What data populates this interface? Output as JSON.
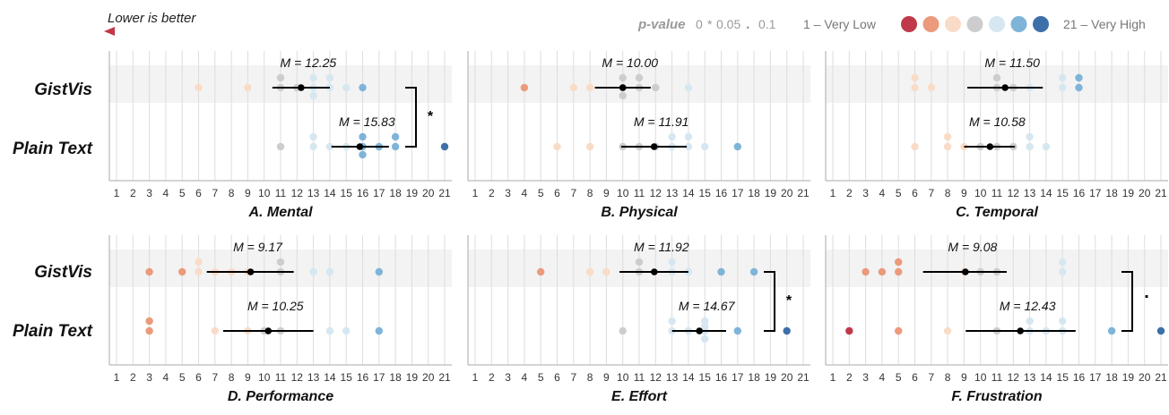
{
  "header": {
    "lower_better": "Lower is better",
    "pvalue_label": "p-value",
    "pvalue_scale": [
      "0",
      "*",
      "0.05",
      ".",
      "0.1"
    ],
    "scale_low": "1 – Very Low",
    "scale_high": "21 – Very High"
  },
  "colors": {
    "scale": [
      "#c0394a",
      "#eb9a7c",
      "#f9dcc8",
      "#cdcdcd",
      "#d6e7f1",
      "#7fb4d8",
      "#3d6fa8"
    ],
    "lower_better_arrow": [
      "#c0394a",
      "#3d6fa8"
    ]
  },
  "row_labels": [
    "GistVis",
    "Plain Text"
  ],
  "chart_data": [
    {
      "type": "scatter",
      "title": "A. Mental",
      "x_ticks": [
        1,
        2,
        3,
        4,
        5,
        6,
        7,
        8,
        9,
        10,
        11,
        12,
        13,
        14,
        15,
        16,
        17,
        18,
        19,
        20,
        21
      ],
      "xlim": [
        1,
        21
      ],
      "series": [
        {
          "name": "GistVis",
          "values": [
            6,
            9,
            11,
            11,
            12,
            13,
            13,
            13,
            14,
            14,
            15,
            16
          ],
          "mean": 12.25,
          "ci": [
            10.5,
            14.0
          ],
          "mean_label": "M = 12.25"
        },
        {
          "name": "Plain Text",
          "values": [
            11,
            13,
            13,
            14,
            15,
            16,
            16,
            16,
            17,
            18,
            18,
            21
          ],
          "mean": 15.83,
          "ci": [
            14.1,
            17.6
          ],
          "mean_label": "M = 15.83"
        }
      ],
      "significance": "*"
    },
    {
      "type": "scatter",
      "title": "B. Physical",
      "x_ticks": [
        1,
        2,
        3,
        4,
        5,
        6,
        7,
        8,
        9,
        10,
        11,
        12,
        13,
        14,
        15,
        16,
        17,
        18,
        19,
        20,
        21
      ],
      "xlim": [
        1,
        21
      ],
      "series": [
        {
          "name": "GistVis",
          "values": [
            4,
            7,
            8,
            10,
            10,
            10,
            11,
            11,
            12,
            14
          ],
          "mean": 10.0,
          "ci": [
            8.3,
            11.7
          ],
          "mean_label": "M = 10.00"
        },
        {
          "name": "Plain Text",
          "values": [
            6,
            8,
            10,
            11,
            12,
            13,
            13,
            14,
            14,
            15,
            17
          ],
          "mean": 11.91,
          "ci": [
            9.9,
            13.9
          ],
          "mean_label": "M = 11.91"
        }
      ],
      "significance": ""
    },
    {
      "type": "scatter",
      "title": "C. Temporal",
      "x_ticks": [
        1,
        2,
        3,
        4,
        5,
        6,
        7,
        8,
        9,
        10,
        11,
        12,
        13,
        14,
        15,
        16,
        17,
        18,
        19,
        20,
        21
      ],
      "xlim": [
        1,
        21
      ],
      "series": [
        {
          "name": "GistVis",
          "values": [
            6,
            6,
            7,
            11,
            11,
            12,
            13,
            15,
            15,
            16,
            16
          ],
          "mean": 11.5,
          "ci": [
            9.2,
            13.8
          ],
          "mean_label": "M = 11.50"
        },
        {
          "name": "Plain Text",
          "values": [
            6,
            8,
            8,
            9,
            10,
            11,
            12,
            13,
            13,
            14
          ],
          "mean": 10.58,
          "ci": [
            9.0,
            12.1
          ],
          "mean_label": "M = 10.58"
        }
      ],
      "significance": ""
    },
    {
      "type": "scatter",
      "title": "D. Performance",
      "x_ticks": [
        1,
        2,
        3,
        4,
        5,
        6,
        7,
        8,
        9,
        10,
        11,
        12,
        13,
        14,
        15,
        16,
        17,
        18,
        19,
        20,
        21
      ],
      "xlim": [
        1,
        21
      ],
      "series": [
        {
          "name": "GistVis",
          "values": [
            3,
            5,
            6,
            6,
            7,
            8,
            9,
            11,
            11,
            13,
            14,
            17
          ],
          "mean": 9.17,
          "ci": [
            6.5,
            11.8
          ],
          "mean_label": "M = 9.17"
        },
        {
          "name": "Plain Text",
          "values": [
            3,
            3,
            7,
            9,
            10,
            11,
            14,
            15,
            17
          ],
          "mean": 10.25,
          "ci": [
            7.5,
            13.0
          ],
          "mean_label": "M = 10.25"
        }
      ],
      "significance": ""
    },
    {
      "type": "scatter",
      "title": "E. Effort",
      "x_ticks": [
        1,
        2,
        3,
        4,
        5,
        6,
        7,
        8,
        9,
        10,
        11,
        12,
        13,
        14,
        15,
        16,
        17,
        18,
        19,
        20,
        21
      ],
      "xlim": [
        1,
        21
      ],
      "series": [
        {
          "name": "GistVis",
          "values": [
            5,
            8,
            9,
            11,
            11,
            13,
            13,
            14,
            16,
            18
          ],
          "mean": 11.92,
          "ci": [
            9.8,
            14.0
          ],
          "mean_label": "M = 11.92"
        },
        {
          "name": "Plain Text",
          "values": [
            10,
            13,
            13,
            14,
            15,
            15,
            15,
            15,
            17,
            20
          ],
          "mean": 14.67,
          "ci": [
            13.0,
            16.3
          ],
          "mean_label": "M = 14.67"
        }
      ],
      "significance": "*"
    },
    {
      "type": "scatter",
      "title": "F. Frustration",
      "x_ticks": [
        1,
        2,
        3,
        4,
        5,
        6,
        7,
        8,
        9,
        10,
        11,
        12,
        13,
        14,
        15,
        16,
        17,
        18,
        19,
        20,
        21
      ],
      "xlim": [
        1,
        21
      ],
      "series": [
        {
          "name": "GistVis",
          "values": [
            3,
            4,
            5,
            5,
            9,
            10,
            11,
            15,
            15
          ],
          "mean": 9.08,
          "ci": [
            6.5,
            11.6
          ],
          "mean_label": "M = 9.08"
        },
        {
          "name": "Plain Text",
          "values": [
            2,
            5,
            8,
            11,
            13,
            13,
            14,
            15,
            15,
            18,
            21
          ],
          "mean": 12.43,
          "ci": [
            9.1,
            15.8
          ],
          "mean_label": "M = 12.43"
        }
      ],
      "significance": "."
    }
  ]
}
